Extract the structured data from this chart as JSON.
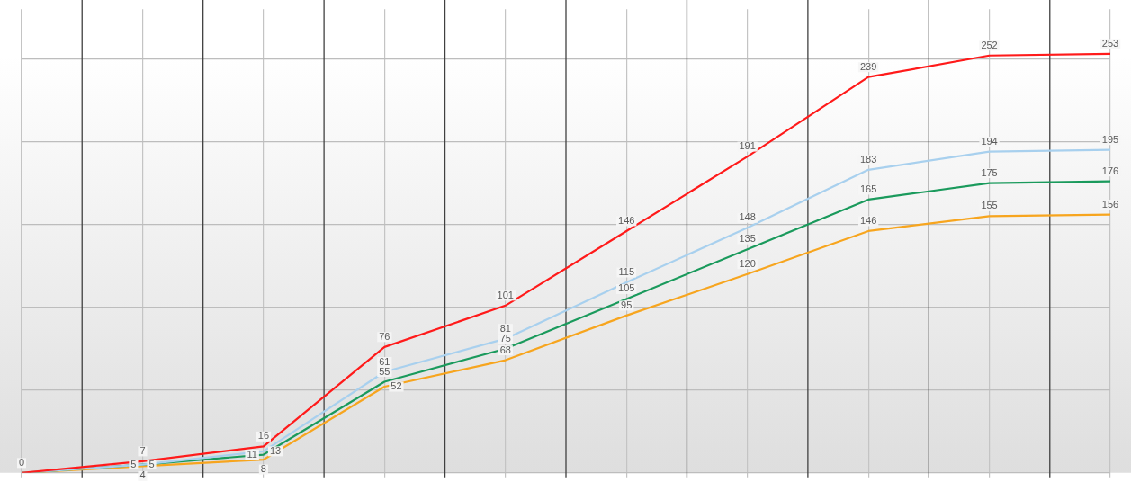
{
  "chart_data": {
    "type": "line",
    "categories": [
      null,
      null,
      null,
      null,
      null,
      null,
      null,
      null,
      null,
      null
    ],
    "series": [
      {
        "color": "#ff1a1a",
        "values": [
          0,
          7,
          16,
          76,
          101,
          146,
          191,
          239,
          252,
          253
        ]
      },
      {
        "color": "#a8d0ee",
        "values": [
          0,
          5,
          13,
          61,
          81,
          115,
          148,
          183,
          194,
          195
        ],
        "value_labels": [
          null,
          "5",
          "13",
          "61",
          "81",
          "115",
          "148",
          "183",
          "194",
          "195"
        ]
      },
      {
        "color": "#1a9a5c",
        "values": [
          0,
          5,
          11,
          55,
          75,
          105,
          135,
          165,
          175,
          176
        ],
        "value_labels": [
          null,
          "5",
          "11",
          "55",
          "75",
          "105",
          "135",
          "165",
          "175",
          "176"
        ]
      },
      {
        "color": "#f7a51e",
        "values": [
          0,
          4,
          8,
          52,
          68,
          95,
          120,
          146,
          155,
          156
        ],
        "value_labels": [
          null,
          "4",
          "8",
          "52",
          "68",
          "95",
          "120",
          "146",
          "155",
          "156"
        ]
      }
    ],
    "ylim": [
      0,
      280
    ],
    "yticks": [
      {
        "value": 0,
        "label": null
      },
      {
        "value": 50,
        "label": null
      },
      {
        "value": 100,
        "label": null
      },
      {
        "value": 150,
        "label": null
      },
      {
        "value": 200,
        "label": null
      },
      {
        "value": 250,
        "label": null
      }
    ],
    "grid": true,
    "data_labels": true,
    "marker": "none",
    "line_style": "solid",
    "legend": false
  }
}
